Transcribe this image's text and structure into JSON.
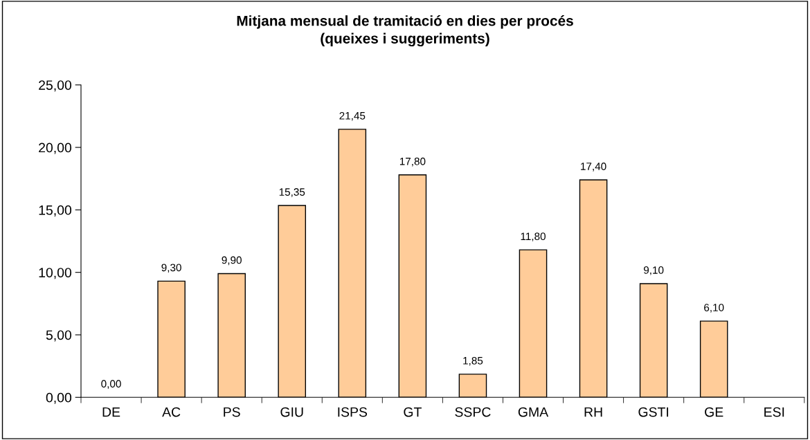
{
  "chart_data": {
    "type": "bar",
    "title": "Mitjana mensual de tramitació en dies per procés\n(queixes i suggeriments)",
    "categories": [
      "DE",
      "AC",
      "PS",
      "GIU",
      "ISPS",
      "GT",
      "SSPC",
      "GMA",
      "RH",
      "GSTI",
      "GE",
      "ESI"
    ],
    "values": [
      0,
      9.3,
      9.9,
      15.35,
      21.45,
      17.8,
      1.85,
      11.8,
      17.4,
      9.1,
      6.1,
      null
    ],
    "value_labels": [
      "0,00",
      "9,30",
      "9,90",
      "15,35",
      "21,45",
      "17,80",
      "1,85",
      "11,80",
      "17,40",
      "9,10",
      "6,10",
      null
    ],
    "color": "#ffcc99",
    "ylim": [
      0,
      25
    ],
    "yticks": [
      {
        "value": 0,
        "label": "0,00"
      },
      {
        "value": 5,
        "label": "5,00"
      },
      {
        "value": 10,
        "label": "10,00"
      },
      {
        "value": 15,
        "label": "15,00"
      },
      {
        "value": 20,
        "label": "20,00"
      },
      {
        "value": 25,
        "label": "25,00"
      }
    ],
    "grid": false,
    "legend": false
  }
}
